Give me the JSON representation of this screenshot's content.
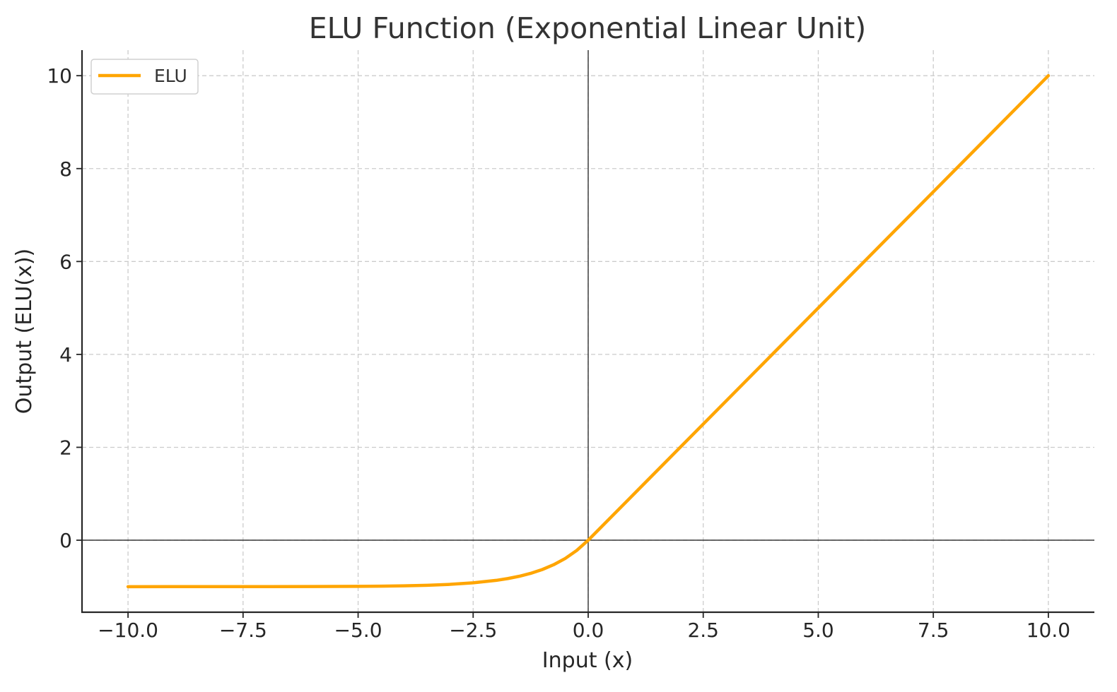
{
  "chart_data": {
    "type": "line",
    "title": "ELU Function (Exponential Linear Unit)",
    "xlabel": "Input (x)",
    "ylabel": "Output (ELU(x))",
    "xlim": [
      -11,
      11
    ],
    "ylim": [
      -1.55,
      10.55
    ],
    "xticks": [
      -10.0,
      -7.5,
      -5.0,
      -2.5,
      0.0,
      2.5,
      5.0,
      7.5,
      10.0
    ],
    "xtick_labels": [
      "−10.0",
      "−7.5",
      "−5.0",
      "−2.5",
      "0.0",
      "2.5",
      "5.0",
      "7.5",
      "10.0"
    ],
    "yticks": [
      0,
      2,
      4,
      6,
      8,
      10
    ],
    "ytick_labels": [
      "0",
      "2",
      "4",
      "6",
      "8",
      "10"
    ],
    "grid": true,
    "legend_position": "top-left",
    "reference_lines": {
      "x": 0,
      "y": 0
    },
    "series": [
      {
        "name": "ELU",
        "color": "#FFA500",
        "x": [
          -10,
          -9,
          -8,
          -7,
          -6,
          -5,
          -4.5,
          -4,
          -3.5,
          -3,
          -2.5,
          -2,
          -1.75,
          -1.5,
          -1.25,
          -1,
          -0.75,
          -0.5,
          -0.25,
          0,
          1,
          2,
          3,
          4,
          5,
          6,
          7,
          8,
          9,
          10
        ],
        "y": [
          -1.0,
          -0.9999,
          -0.9997,
          -0.9991,
          -0.9975,
          -0.9933,
          -0.9889,
          -0.9817,
          -0.9698,
          -0.9502,
          -0.9179,
          -0.8647,
          -0.8262,
          -0.7769,
          -0.7135,
          -0.6321,
          -0.5276,
          -0.3935,
          -0.2212,
          0,
          1,
          2,
          3,
          4,
          5,
          6,
          7,
          8,
          9,
          10
        ]
      }
    ]
  }
}
